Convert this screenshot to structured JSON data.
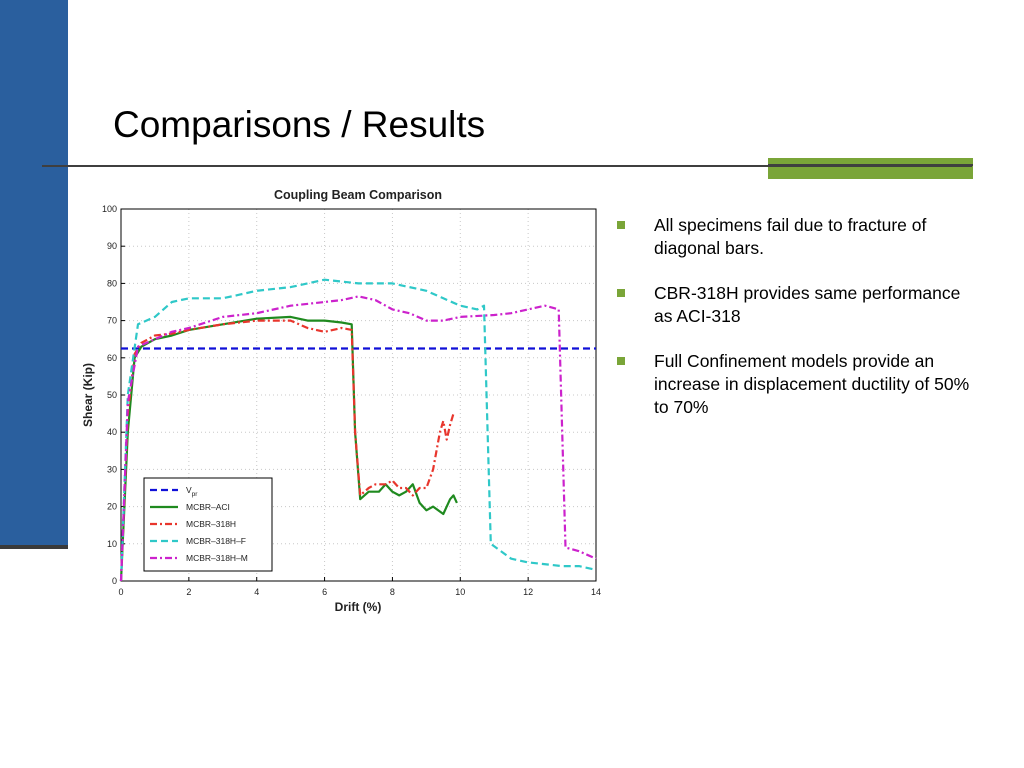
{
  "slide": {
    "title": "Comparisons / Results",
    "bullets": [
      "All specimens fail due to fracture of diagonal bars.",
      "CBR-318H provides same performance as ACI-318",
      "Full Confinement models provide an increase in displacement ductility of 50% to 70%"
    ],
    "colors": {
      "sidebar": "#2a5f9e",
      "accent": "#7aa538",
      "bullet": "#7aa538"
    }
  },
  "chart_data": {
    "type": "line",
    "title": "Coupling Beam Comparison",
    "xlabel": "Drift (%)",
    "ylabel": "Shear (Kip)",
    "xlim": [
      0,
      14
    ],
    "ylim": [
      0,
      100
    ],
    "xticks": [
      0,
      2,
      4,
      6,
      8,
      10,
      12,
      14
    ],
    "yticks": [
      0,
      10,
      20,
      30,
      40,
      50,
      60,
      70,
      80,
      90,
      100
    ],
    "grid": true,
    "legend_position": "bottom-left",
    "series": [
      {
        "name": "V",
        "subscript": "pr",
        "color": "#1010d8",
        "dash": "dashed",
        "points": [
          [
            0,
            62.5
          ],
          [
            14,
            62.5
          ]
        ]
      },
      {
        "name": "MCBR–ACI",
        "color": "#1f8a1f",
        "dash": "solid",
        "points": [
          [
            0,
            0
          ],
          [
            0.2,
            40
          ],
          [
            0.4,
            60
          ],
          [
            0.6,
            63
          ],
          [
            1,
            65
          ],
          [
            1.5,
            66
          ],
          [
            2,
            67.5
          ],
          [
            3,
            69
          ],
          [
            4,
            70.5
          ],
          [
            5,
            71
          ],
          [
            5.5,
            70
          ],
          [
            6,
            70
          ],
          [
            6.5,
            69.5
          ],
          [
            6.8,
            69
          ],
          [
            6.9,
            40
          ],
          [
            7.05,
            22
          ],
          [
            7.3,
            24
          ],
          [
            7.6,
            24
          ],
          [
            7.8,
            26
          ],
          [
            8.0,
            24
          ],
          [
            8.2,
            23
          ],
          [
            8.4,
            24
          ],
          [
            8.6,
            26
          ],
          [
            8.8,
            21
          ],
          [
            9.0,
            19
          ],
          [
            9.2,
            20
          ],
          [
            9.5,
            18
          ],
          [
            9.7,
            22
          ],
          [
            9.8,
            23
          ],
          [
            9.9,
            21
          ]
        ]
      },
      {
        "name": "MCBR–318H",
        "color": "#e8362d",
        "dash": "dashdot",
        "points": [
          [
            0,
            0
          ],
          [
            0.2,
            45
          ],
          [
            0.4,
            61
          ],
          [
            0.6,
            64
          ],
          [
            1,
            66
          ],
          [
            1.5,
            66.5
          ],
          [
            2,
            67.5
          ],
          [
            3,
            69
          ],
          [
            4,
            70
          ],
          [
            4.5,
            70
          ],
          [
            5,
            70
          ],
          [
            5.5,
            68
          ],
          [
            6,
            67
          ],
          [
            6.5,
            68
          ],
          [
            6.8,
            67.5
          ],
          [
            6.9,
            40
          ],
          [
            7.05,
            23
          ],
          [
            7.3,
            25
          ],
          [
            7.5,
            26
          ],
          [
            7.8,
            26
          ],
          [
            8,
            27
          ],
          [
            8.2,
            25
          ],
          [
            8.4,
            25
          ],
          [
            8.6,
            23
          ],
          [
            8.8,
            25
          ],
          [
            9.0,
            25
          ],
          [
            9.2,
            30
          ],
          [
            9.3,
            35
          ],
          [
            9.4,
            40
          ],
          [
            9.5,
            43
          ],
          [
            9.6,
            38
          ],
          [
            9.7,
            42
          ],
          [
            9.8,
            45
          ]
        ]
      },
      {
        "name": "MCBR–318H–F",
        "color": "#2fc8c8",
        "dash": "dashed",
        "points": [
          [
            0,
            0
          ],
          [
            0.2,
            50
          ],
          [
            0.5,
            69
          ],
          [
            1,
            71
          ],
          [
            1.5,
            75
          ],
          [
            2,
            76
          ],
          [
            3,
            76
          ],
          [
            3.5,
            77
          ],
          [
            4,
            78
          ],
          [
            5,
            79
          ],
          [
            6,
            81
          ],
          [
            7,
            80
          ],
          [
            7.5,
            80
          ],
          [
            8,
            80
          ],
          [
            8.5,
            79
          ],
          [
            9,
            78
          ],
          [
            9.5,
            76
          ],
          [
            10,
            74
          ],
          [
            10.5,
            73
          ],
          [
            10.7,
            74
          ],
          [
            10.9,
            10
          ],
          [
            11.5,
            6
          ],
          [
            12,
            5
          ],
          [
            13,
            4
          ],
          [
            13.5,
            4
          ],
          [
            14,
            3
          ]
        ]
      },
      {
        "name": "MCBR–318H–M",
        "color": "#cc22cc",
        "dash": "dashdot",
        "points": [
          [
            0,
            0
          ],
          [
            0.2,
            48
          ],
          [
            0.5,
            63
          ],
          [
            1,
            65
          ],
          [
            1.5,
            67
          ],
          [
            2,
            68
          ],
          [
            3,
            71
          ],
          [
            4,
            72
          ],
          [
            5,
            74
          ],
          [
            6,
            75
          ],
          [
            6.5,
            75.5
          ],
          [
            7,
            76.5
          ],
          [
            7.5,
            75.5
          ],
          [
            8,
            73
          ],
          [
            8.5,
            72
          ],
          [
            9,
            70
          ],
          [
            9.5,
            70
          ],
          [
            10,
            71
          ],
          [
            11,
            71.5
          ],
          [
            11.5,
            72
          ],
          [
            12,
            73
          ],
          [
            12.5,
            74
          ],
          [
            12.9,
            73
          ],
          [
            13.1,
            9
          ],
          [
            13.5,
            8
          ],
          [
            14,
            6
          ]
        ]
      }
    ]
  }
}
